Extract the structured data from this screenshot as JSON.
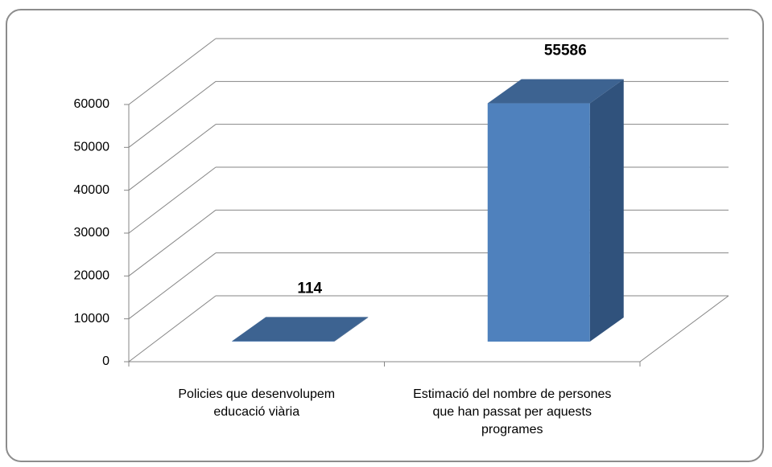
{
  "chart_data": {
    "type": "bar3d",
    "categories": [
      "Policies que desenvolupem educació viària",
      "Estimació del nombre de persones que han passat per aquests programes"
    ],
    "values": [
      114,
      55586
    ],
    "color": "#4f81bd",
    "side_color": "#30527c",
    "top_color": "#3d6391",
    "ylim": [
      0,
      60000
    ],
    "yticks": [
      0,
      10000,
      20000,
      30000,
      40000,
      50000,
      60000
    ],
    "grid": true
  }
}
